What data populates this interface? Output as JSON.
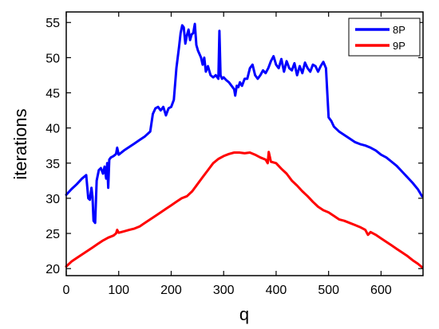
{
  "chart_data": {
    "type": "line",
    "xlabel": "q",
    "ylabel": "iterations",
    "xlim": [
      0,
      680
    ],
    "ylim": [
      19,
      56.5
    ],
    "xticks": [
      0,
      100,
      200,
      300,
      400,
      500,
      600
    ],
    "yticks": [
      20,
      25,
      30,
      35,
      40,
      45,
      50,
      55
    ],
    "xtick_labels": [
      "0",
      "100",
      "200",
      "300",
      "400",
      "500",
      "600"
    ],
    "ytick_labels": [
      "20",
      "25",
      "30",
      "35",
      "40",
      "45",
      "50",
      "55"
    ],
    "grid": false,
    "legend_position": "top-right",
    "series": [
      {
        "name": "8P",
        "color": "#0000ff",
        "x": [
          0,
          10,
          20,
          30,
          38,
          42,
          45,
          48,
          50,
          52,
          55,
          58,
          62,
          66,
          70,
          73,
          76,
          78,
          80,
          82,
          85,
          90,
          95,
          97,
          100,
          110,
          120,
          130,
          140,
          150,
          160,
          165,
          170,
          175,
          180,
          185,
          190,
          195,
          200,
          205,
          210,
          215,
          218,
          221,
          224,
          227,
          230,
          233,
          236,
          239,
          242,
          245,
          248,
          251,
          254,
          257,
          260,
          263,
          266,
          270,
          275,
          280,
          285,
          290,
          292,
          294,
          297,
          300,
          305,
          310,
          315,
          320,
          322,
          325,
          328,
          331,
          335,
          340,
          345,
          350,
          355,
          360,
          365,
          370,
          375,
          380,
          385,
          390,
          395,
          400,
          405,
          410,
          415,
          420,
          425,
          430,
          435,
          440,
          445,
          450,
          455,
          460,
          465,
          470,
          475,
          480,
          485,
          490,
          495,
          500,
          505,
          510,
          520,
          530,
          540,
          550,
          560,
          570,
          580,
          590,
          600,
          610,
          620,
          630,
          640,
          650,
          660,
          670,
          678
        ],
        "values": [
          30.5,
          31.3,
          32.0,
          32.8,
          33.3,
          30.0,
          29.8,
          31.5,
          30.2,
          26.8,
          26.5,
          32.5,
          34.0,
          34.3,
          33.5,
          34.5,
          32.8,
          35.0,
          31.5,
          35.5,
          35.8,
          36.0,
          36.3,
          37.2,
          36.2,
          36.8,
          37.3,
          37.8,
          38.3,
          38.8,
          39.5,
          42.0,
          42.8,
          43.0,
          42.5,
          43.0,
          41.8,
          42.8,
          43.0,
          44.0,
          48.5,
          51.5,
          53.5,
          54.6,
          54.3,
          52.0,
          53.2,
          54.0,
          52.5,
          53.3,
          53.5,
          54.8,
          51.8,
          51.0,
          50.5,
          50.0,
          49.0,
          50.0,
          48.0,
          48.8,
          47.5,
          47.2,
          47.5,
          47.0,
          53.8,
          47.5,
          47.0,
          47.2,
          46.8,
          46.5,
          46.0,
          45.5,
          44.6,
          46.0,
          45.8,
          46.5,
          46.0,
          47.0,
          47.0,
          48.5,
          49.0,
          47.5,
          47.0,
          47.5,
          48.2,
          47.8,
          48.5,
          49.5,
          50.2,
          49.0,
          48.5,
          49.8,
          48.0,
          49.5,
          48.5,
          48.2,
          49.2,
          47.5,
          48.8,
          47.8,
          49.3,
          48.5,
          48.0,
          49.0,
          48.8,
          48.0,
          48.8,
          49.4,
          48.5,
          41.5,
          41.0,
          40.2,
          39.5,
          39.0,
          38.5,
          38.0,
          37.7,
          37.5,
          37.2,
          36.8,
          36.2,
          35.8,
          35.2,
          34.6,
          33.8,
          33.0,
          32.2,
          31.3,
          30.3
        ]
      },
      {
        "name": "9P",
        "color": "#ff0000",
        "x": [
          0,
          10,
          20,
          30,
          40,
          50,
          60,
          70,
          80,
          90,
          95,
          97,
          100,
          110,
          120,
          130,
          140,
          150,
          160,
          170,
          180,
          190,
          200,
          210,
          220,
          230,
          240,
          250,
          260,
          270,
          280,
          290,
          300,
          310,
          320,
          330,
          340,
          350,
          360,
          370,
          380,
          384,
          386,
          390,
          400,
          410,
          420,
          430,
          440,
          450,
          460,
          470,
          480,
          490,
          500,
          510,
          520,
          530,
          540,
          550,
          560,
          570,
          575,
          580,
          590,
          600,
          610,
          620,
          630,
          640,
          650,
          660,
          670,
          678
        ],
        "values": [
          20.3,
          21.0,
          21.5,
          22.0,
          22.5,
          23.0,
          23.5,
          24.0,
          24.4,
          24.7,
          25.0,
          25.5,
          25.1,
          25.3,
          25.5,
          25.7,
          26.0,
          26.5,
          27.0,
          27.5,
          28.0,
          28.5,
          29.0,
          29.5,
          30.0,
          30.3,
          31.0,
          32.0,
          33.0,
          34.0,
          35.0,
          35.6,
          36.0,
          36.3,
          36.5,
          36.5,
          36.4,
          36.5,
          36.2,
          35.8,
          35.5,
          35.0,
          36.6,
          35.2,
          35.0,
          34.2,
          33.5,
          32.5,
          31.8,
          31.0,
          30.3,
          29.5,
          28.8,
          28.3,
          28.0,
          27.5,
          27.0,
          26.8,
          26.5,
          26.2,
          25.9,
          25.5,
          24.8,
          25.2,
          24.8,
          24.3,
          23.8,
          23.3,
          22.8,
          22.3,
          21.8,
          21.2,
          20.7,
          20.2
        ]
      }
    ]
  }
}
